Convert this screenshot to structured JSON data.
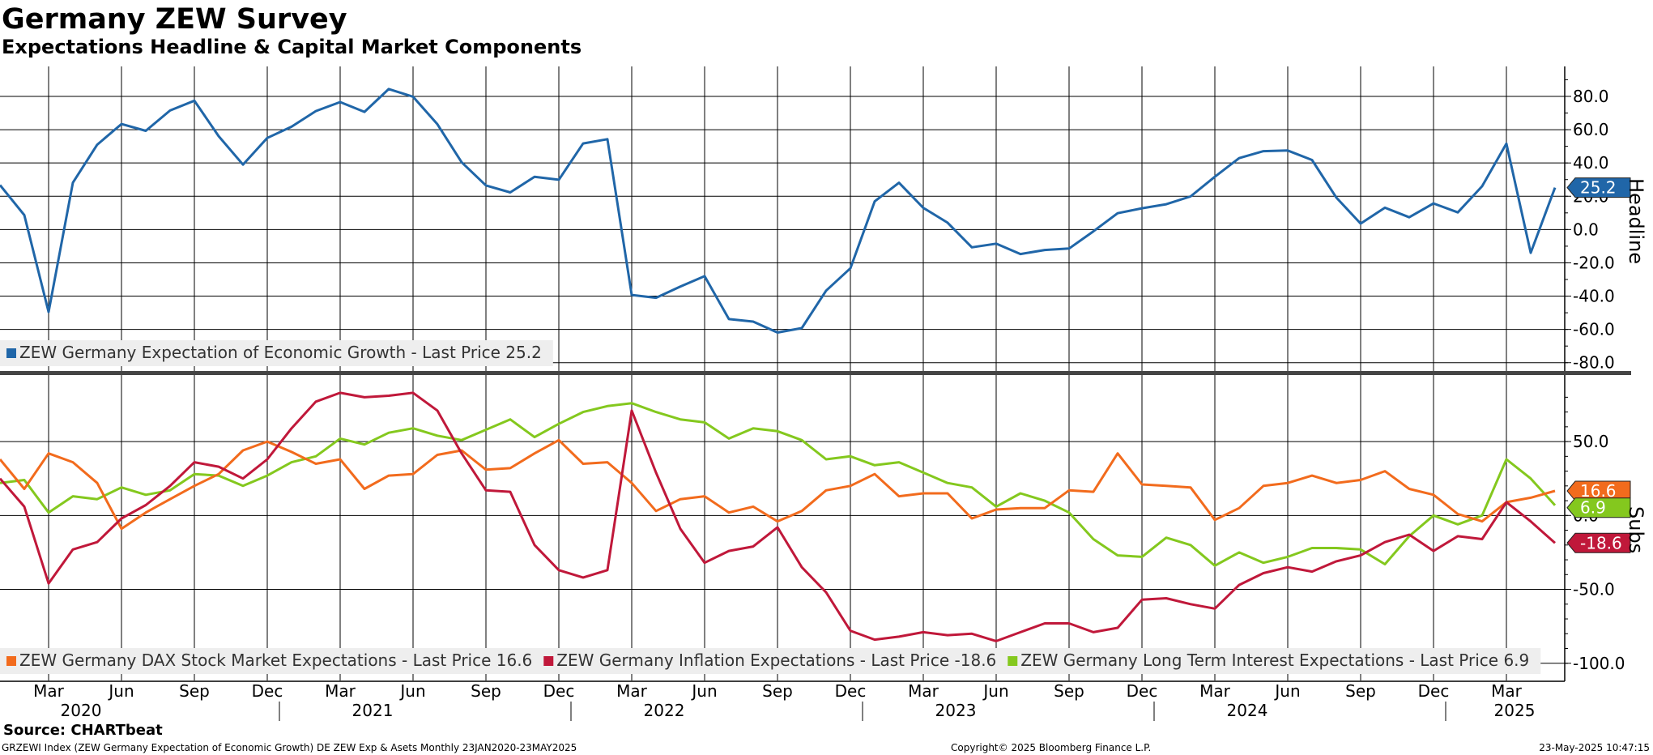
{
  "header": {
    "title": "Germany ZEW Survey",
    "subtitle": "Expectations Headline & Capital Market Components"
  },
  "footer": {
    "source": "Source: CHARTbeat",
    "ticker_info": "GRZEWI Index (ZEW Germany Expectation of Economic Growth) DE ZEW Exp & Asets  Monthly 23JAN2020-23MAY2025",
    "copyright": "Copyright© 2025 Bloomberg Finance L.P.",
    "timestamp": "23-May-2025 10:47:15"
  },
  "colors": {
    "headline": "#2066a8",
    "dax": "#f26b1d",
    "inflation": "#c0183a",
    "long_term": "#84c81e",
    "grid": "#000000"
  },
  "chart_data": [
    {
      "type": "line",
      "panel": "top",
      "axis_title": "Headline",
      "ylim": [
        -85,
        98
      ],
      "y_ticks": [
        80,
        60,
        40,
        20,
        0,
        -20,
        -40,
        -60,
        -80
      ],
      "y_tick_labels": [
        "80.0",
        "60.0",
        "40.0",
        "20.0",
        "0.0",
        "-20.0",
        "-40.0",
        "-60.0",
        "-80.0"
      ],
      "grid": true,
      "legend_position": "bottom-left",
      "series": [
        {
          "key": "headline",
          "name": "ZEW Germany Expectation of Economic Growth - Last Price 25.2",
          "last_label": "25.2",
          "x": [
            "2020-01",
            "2020-02",
            "2020-03",
            "2020-04",
            "2020-05",
            "2020-06",
            "2020-07",
            "2020-08",
            "2020-09",
            "2020-10",
            "2020-11",
            "2020-12",
            "2021-01",
            "2021-02",
            "2021-03",
            "2021-04",
            "2021-05",
            "2021-06",
            "2021-07",
            "2021-08",
            "2021-09",
            "2021-10",
            "2021-11",
            "2021-12",
            "2022-01",
            "2022-02",
            "2022-03",
            "2022-04",
            "2022-05",
            "2022-06",
            "2022-07",
            "2022-08",
            "2022-09",
            "2022-10",
            "2022-11",
            "2022-12",
            "2023-01",
            "2023-02",
            "2023-03",
            "2023-04",
            "2023-05",
            "2023-06",
            "2023-07",
            "2023-08",
            "2023-09",
            "2023-10",
            "2023-11",
            "2023-12",
            "2024-01",
            "2024-02",
            "2024-03",
            "2024-04",
            "2024-05",
            "2024-06",
            "2024-07",
            "2024-08",
            "2024-09",
            "2024-10",
            "2024-11",
            "2024-12",
            "2025-01",
            "2025-02",
            "2025-03",
            "2025-04",
            "2025-05"
          ],
          "values": [
            26.7,
            8.7,
            -49.5,
            28.2,
            51.0,
            63.4,
            59.3,
            71.5,
            77.4,
            56.1,
            39.0,
            55.0,
            61.8,
            71.2,
            76.6,
            70.7,
            84.4,
            79.8,
            63.3,
            40.4,
            26.5,
            22.3,
            31.7,
            29.9,
            51.7,
            54.3,
            -39.3,
            -41.0,
            -34.3,
            -28.0,
            -53.8,
            -55.3,
            -61.9,
            -59.2,
            -36.7,
            -23.3,
            16.9,
            28.1,
            13.0,
            4.1,
            -10.7,
            -8.5,
            -14.7,
            -12.3,
            -11.4,
            -1.1,
            9.8,
            12.8,
            15.2,
            19.9,
            31.7,
            42.9,
            47.1,
            47.5,
            41.8,
            19.2,
            3.6,
            13.1,
            7.4,
            15.7,
            10.3,
            26.0,
            51.6,
            -14.0,
            25.2
          ]
        }
      ]
    },
    {
      "type": "line",
      "panel": "bottom",
      "axis_title": "Subs",
      "ylim": [
        -110,
        95
      ],
      "y_ticks": [
        50,
        0,
        -50,
        -100
      ],
      "y_tick_labels": [
        "50.0",
        "0.0",
        "-50.0",
        "-100.0"
      ],
      "grid": true,
      "legend_position": "bottom-left",
      "x_tick_labels": [
        "Mar",
        "Jun",
        "Sep",
        "Dec",
        "Mar",
        "Jun",
        "Sep",
        "Dec",
        "Mar",
        "Jun",
        "Sep",
        "Dec",
        "Mar",
        "Jun",
        "Sep",
        "Dec",
        "Mar",
        "Jun",
        "Sep",
        "Dec",
        "Mar"
      ],
      "x_tick_dates": [
        "2020-03",
        "2020-06",
        "2020-09",
        "2020-12",
        "2021-03",
        "2021-06",
        "2021-09",
        "2021-12",
        "2022-03",
        "2022-06",
        "2022-09",
        "2022-12",
        "2023-03",
        "2023-06",
        "2023-09",
        "2023-12",
        "2024-03",
        "2024-06",
        "2024-09",
        "2024-12",
        "2025-03"
      ],
      "year_labels": [
        "2020",
        "2021",
        "2022",
        "2023",
        "2024",
        "2025"
      ],
      "year_dates": [
        "2020-04",
        "2021-04",
        "2022-04",
        "2023-04",
        "2024-04",
        "2025-03"
      ],
      "series": [
        {
          "key": "dax",
          "name": "ZEW Germany DAX Stock Market Expectations - Last Price 16.6",
          "last_label": "16.6",
          "values": [
            38.0,
            18.0,
            42.0,
            36.0,
            22.0,
            -9.0,
            2.0,
            11.0,
            20.0,
            28.0,
            44.0,
            50.0,
            43.0,
            35.0,
            38.0,
            18.0,
            27.0,
            28.0,
            41.0,
            44.0,
            31.0,
            32.0,
            42.0,
            51.0,
            35.0,
            36.0,
            22.0,
            3.0,
            11.0,
            13.0,
            2.0,
            6.0,
            -4.0,
            3.0,
            17.0,
            20.0,
            28.0,
            13.0,
            15.0,
            15.0,
            -2.0,
            4.0,
            5.0,
            5.0,
            17.0,
            16.0,
            42.0,
            21.0,
            20.0,
            19.0,
            -3.0,
            5.0,
            20.0,
            22.0,
            27.0,
            22.0,
            24.0,
            30.0,
            18.0,
            14.0,
            1.0,
            -4.0,
            9.0,
            12.0,
            16.6
          ]
        },
        {
          "key": "inflation",
          "name": "ZEW Germany Inflation Expectations - Last Price -18.6",
          "last_label": "-18.6",
          "values": [
            25.0,
            6.0,
            -46.0,
            -23.0,
            -18.0,
            -2.0,
            7.0,
            20.0,
            36.0,
            33.0,
            25.0,
            38.0,
            59.0,
            77.0,
            83.0,
            80.0,
            81.0,
            83.0,
            71.0,
            42.0,
            17.0,
            16.0,
            -20.0,
            -37.0,
            -42.0,
            -37.0,
            71.0,
            29.0,
            -9.0,
            -32.0,
            -24.0,
            -21.0,
            -8.0,
            -35.0,
            -52.0,
            -78.0,
            -84.0,
            -82.0,
            -79.0,
            -81.0,
            -80.0,
            -85.0,
            -79.0,
            -73.0,
            -73.0,
            -79.0,
            -76.0,
            -57.0,
            -56.0,
            -60.0,
            -63.0,
            -47.0,
            -39.0,
            -35.0,
            -38.0,
            -31.0,
            -27.0,
            -18.0,
            -13.0,
            -24.0,
            -14.0,
            -16.0,
            9.0,
            -4.0,
            -18.6
          ]
        },
        {
          "key": "long_term",
          "name": "ZEW Germany Long Term Interest Expectations - Last Price 6.9",
          "last_label": "6.9",
          "values": [
            22.0,
            24.0,
            2.0,
            13.0,
            11.0,
            19.0,
            14.0,
            17.0,
            28.0,
            27.0,
            20.0,
            27.0,
            36.0,
            40.0,
            52.0,
            48.0,
            56.0,
            59.0,
            54.0,
            51.0,
            58.0,
            65.0,
            53.0,
            62.0,
            70.0,
            74.0,
            76.0,
            70.0,
            65.0,
            63.0,
            52.0,
            59.0,
            57.0,
            51.0,
            38.0,
            40.0,
            34.0,
            36.0,
            29.0,
            22.0,
            19.0,
            6.0,
            15.0,
            10.0,
            2.0,
            -16.0,
            -27.0,
            -28.0,
            -15.0,
            -20.0,
            -34.0,
            -25.0,
            -32.0,
            -28.0,
            -22.0,
            -22.0,
            -23.0,
            -33.0,
            -14.0,
            0.0,
            -6.0,
            0.0,
            38.0,
            25.0,
            6.9
          ]
        }
      ]
    }
  ]
}
